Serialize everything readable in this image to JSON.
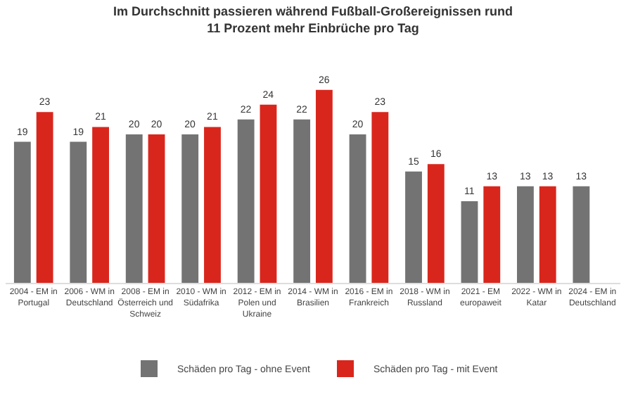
{
  "chart_data": {
    "type": "bar",
    "title": "Im Durchschnitt passieren während Fußball-Großereignissen rund 11 Prozent mehr Einbrüche pro Tag",
    "categories": [
      "2004 - EM in Portugal",
      "2006 - WM in Deutschland",
      "2008 - EM in Österreich und Schweiz",
      "2010 - WM in Südafrika",
      "2012 - EM in Polen und Ukraine",
      "2014 - WM in Brasilien",
      "2016 - EM in Frankreich",
      "2018 - WM in Russland",
      "2021 - EM europaweit",
      "2022 - WM in Katar",
      "2024 - EM in Deutschland"
    ],
    "series": [
      {
        "name": "Schäden pro Tag - ohne Event",
        "color": "#737373",
        "values": [
          19,
          19,
          20,
          20,
          22,
          22,
          20,
          15,
          11,
          13,
          13
        ]
      },
      {
        "name": "Schäden pro Tag - mit Event",
        "color": "#d9261c",
        "values": [
          23,
          21,
          20,
          21,
          24,
          26,
          23,
          16,
          13,
          13,
          null
        ]
      }
    ],
    "data_labels": true,
    "legend": "bottom"
  }
}
